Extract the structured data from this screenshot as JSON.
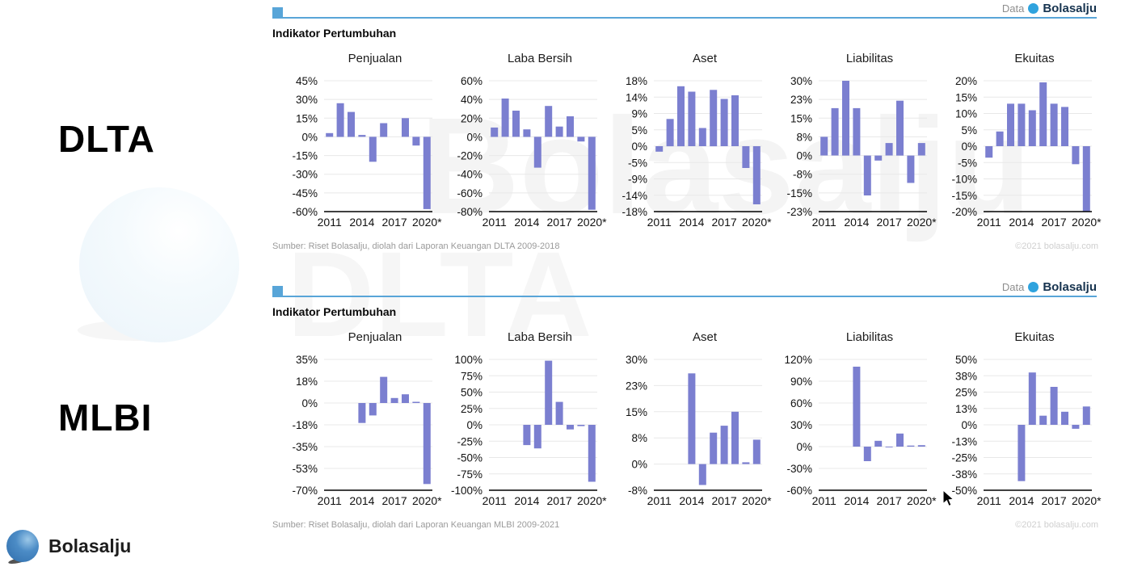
{
  "page": {
    "badge": {
      "prefix": "Data",
      "brand": "Bolasalju"
    },
    "section_title": "Indikator Pertumbuhan",
    "footer_logo_text": "Bolasalju",
    "watermark_text": "Bolasalju",
    "watermark_ticker": "DLTA"
  },
  "sections": [
    {
      "ticker": "DLTA",
      "source": "Sumber: Riset Bolasalju, diolah dari Laporan Keuangan DLTA 2009-2018",
      "copyright": "©2021 bolasalju.com"
    },
    {
      "ticker": "MLBI",
      "source": "Sumber: Riset Bolasalju, diolah dari Laporan Keuangan MLBI 2009-2021",
      "copyright": "©2021 bolasalju.com"
    }
  ],
  "chart_data": [
    {
      "group": "DLTA",
      "type": "bar",
      "categories": [
        "2011",
        "2012",
        "2013",
        "2014",
        "2015",
        "2016",
        "2017",
        "2018",
        "2019",
        "2020*"
      ],
      "xtick_indices": [
        0,
        3,
        6,
        9
      ],
      "charts": [
        {
          "title": "Penjualan",
          "ticks": [
            "45%",
            "30%",
            "15%",
            "0%",
            "-15%",
            "-30%",
            "-45%",
            "-60%"
          ],
          "ymax": 45,
          "ymin": -60,
          "values": [
            3,
            27,
            20,
            1.5,
            -20,
            11,
            0,
            15,
            -7,
            -58
          ]
        },
        {
          "title": "Laba Bersih",
          "ticks": [
            "60%",
            "40%",
            "20%",
            "0%",
            "-20%",
            "-40%",
            "-60%",
            "-80%"
          ],
          "ymax": 60,
          "ymin": -80,
          "values": [
            10,
            41,
            28,
            8,
            -33,
            33,
            11,
            22,
            -5,
            -78
          ]
        },
        {
          "title": "Aset",
          "ticks": [
            "18%",
            "14%",
            "9%",
            "5%",
            "0%",
            "-5%",
            "-9%",
            "-14%",
            "-18%"
          ],
          "ymax": 18,
          "ymin": -18,
          "values": [
            -1.5,
            7.5,
            16.5,
            15,
            5,
            15.5,
            13,
            14,
            -6,
            -16
          ]
        },
        {
          "title": "Liabilitas",
          "ticks": [
            "30%",
            "23%",
            "15%",
            "8%",
            "0%",
            "-8%",
            "-15%",
            "-23%"
          ],
          "ymax": 30,
          "ymin": -22.5,
          "values": [
            7.5,
            19,
            30,
            19,
            -16,
            -2,
            5,
            22,
            -11,
            5
          ]
        },
        {
          "title": "Ekuitas",
          "ticks": [
            "20%",
            "15%",
            "10%",
            "5%",
            "0%",
            "-5%",
            "-10%",
            "-15%",
            "-20%"
          ],
          "ymax": 20,
          "ymin": -20,
          "values": [
            -3.5,
            4.5,
            13,
            13,
            11,
            19.5,
            13,
            12,
            -5.5,
            -20
          ]
        }
      ]
    },
    {
      "group": "MLBI",
      "type": "bar",
      "categories": [
        "2011",
        "2012",
        "2013",
        "2014",
        "2015",
        "2016",
        "2017",
        "2018",
        "2019",
        "2020*"
      ],
      "xtick_indices": [
        0,
        3,
        6,
        9
      ],
      "charts": [
        {
          "title": "Penjualan",
          "ticks": [
            "35%",
            "18%",
            "0%",
            "-18%",
            "-35%",
            "-53%",
            "-70%"
          ],
          "ymax": 35,
          "ymin": -70,
          "values": [
            null,
            null,
            null,
            -16,
            -10,
            21,
            4,
            7,
            1,
            -65
          ]
        },
        {
          "title": "Laba Bersih",
          "ticks": [
            "100%",
            "75%",
            "50%",
            "25%",
            "0%",
            "-25%",
            "-50%",
            "-75%",
            "-100%"
          ],
          "ymax": 100,
          "ymin": -100,
          "values": [
            null,
            null,
            null,
            -31,
            -36,
            98,
            35,
            -7,
            -2,
            -87
          ]
        },
        {
          "title": "Aset",
          "ticks": [
            "30%",
            "23%",
            "15%",
            "8%",
            "0%",
            "-8%"
          ],
          "ymax": 30,
          "ymin": -7.5,
          "values": [
            null,
            null,
            null,
            26,
            -6,
            9,
            11,
            15,
            0.5,
            7
          ]
        },
        {
          "title": "Liabilitas",
          "ticks": [
            "120%",
            "90%",
            "60%",
            "30%",
            "0%",
            "-30%",
            "-60%"
          ],
          "ymax": 120,
          "ymin": -60,
          "values": [
            null,
            null,
            null,
            110,
            -20,
            8,
            -1,
            18,
            1.5,
            2
          ]
        },
        {
          "title": "Ekuitas",
          "ticks": [
            "50%",
            "38%",
            "25%",
            "13%",
            "0%",
            "-13%",
            "-25%",
            "-38%",
            "-50%"
          ],
          "ymax": 50,
          "ymin": -50,
          "values": [
            null,
            null,
            null,
            -43,
            40,
            7,
            29,
            10,
            -3,
            14
          ]
        }
      ]
    }
  ],
  "colors": {
    "bar": "#7b7fd0",
    "rule": "#58a5d8",
    "grid": "#e8e8e8",
    "axis": "#000000",
    "dot": "#2fa3de"
  }
}
